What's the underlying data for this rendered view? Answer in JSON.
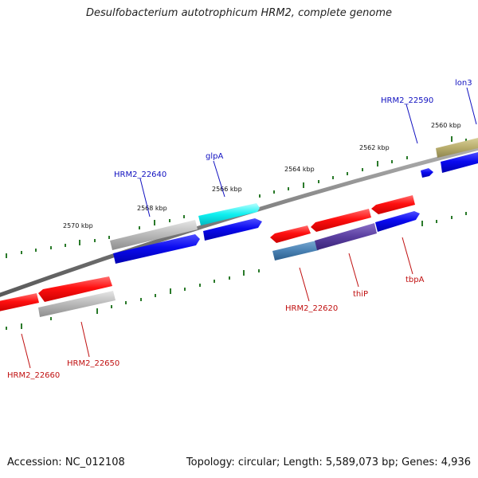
{
  "title": "Desulfobacterium autotrophicum HRM2, complete genome",
  "footer": {
    "accession": "Accession: NC_012108",
    "topology": "Topology: circular; Length: 5,589,073 bp; Genes: 4,936"
  },
  "kbp_labels": [
    "2560 kbp",
    "2562 kbp",
    "2564 kbp",
    "2566 kbp",
    "2568 kbp",
    "2570 kbp"
  ],
  "gene_labels": [
    "lon3",
    "HRM2_22590",
    "glpA",
    "HRM2_22640",
    "HRM2_22620",
    "thiP",
    "tbpA",
    "HRM2_22650",
    "HRM2_22660"
  ],
  "colors": {
    "plus_label": "#1010c0",
    "minus_label": "#c01010",
    "backbone": "#808080",
    "tick": "#2a7a2a"
  }
}
